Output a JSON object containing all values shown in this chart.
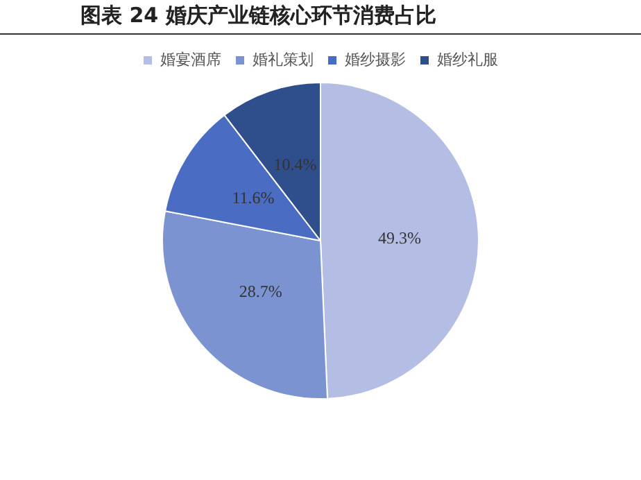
{
  "chart_data": {
    "type": "pie",
    "title": "图表 24 婚庆产业链核心环节消费占比",
    "categories": [
      "婚宴酒席",
      "婚礼策划",
      "婚纱摄影",
      "婚纱礼服"
    ],
    "values": [
      49.3,
      28.7,
      11.6,
      10.4
    ],
    "colors": [
      "#b4bde3",
      "#7c93d1",
      "#4a6cc2",
      "#2f4e8c"
    ],
    "value_labels": [
      "49.3%",
      "28.7%",
      "11.6%",
      "10.4%"
    ],
    "legend": "top"
  }
}
